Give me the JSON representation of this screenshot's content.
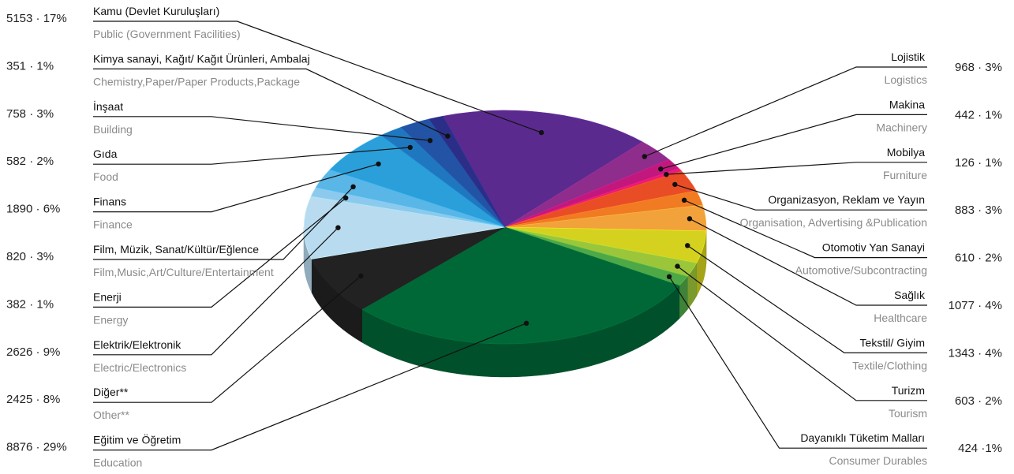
{
  "chart_data": {
    "type": "pie",
    "style": "3d-exploded-labels",
    "slices": [
      {
        "tr": "Kamu (Devlet Kuruluşları)",
        "en": "Public (Government Facilities)",
        "value": 5153,
        "value_label": "5153 · 17%",
        "color": "#5b2a8e",
        "side": "left"
      },
      {
        "tr": "Lojistik",
        "en": "Logistics",
        "value": 968,
        "value_label": "968 · 3%",
        "color": "#8e2d8b",
        "side": "right"
      },
      {
        "tr": "Makina",
        "en": "Machinery",
        "value": 442,
        "value_label": "442 · 1%",
        "color": "#c2187e",
        "side": "right"
      },
      {
        "tr": "Mobilya",
        "en": "Furniture",
        "value": 126,
        "value_label": "126 · 1%",
        "color": "#ec1a74",
        "side": "right"
      },
      {
        "tr": "Organizasyon, Reklam ve Yayın",
        "en": "Organisation, Advertising &Publication",
        "value": 883,
        "value_label": "883 · 3%",
        "color": "#e94d26",
        "side": "right"
      },
      {
        "tr": "Otomotiv Yan Sanayi",
        "en": "Automotive/Subcontracting",
        "value": 610,
        "value_label": "610 · 2%",
        "color": "#f07b22",
        "side": "right"
      },
      {
        "tr": "Sağlık",
        "en": "Healthcare",
        "value": 1077,
        "value_label": "1077 · 4%",
        "color": "#f2a23a",
        "side": "right"
      },
      {
        "tr": "Tekstil/ Giyim",
        "en": "Textile/Clothing",
        "value": 1343,
        "value_label": "1343 · 4%",
        "color": "#d4d21f",
        "side": "right"
      },
      {
        "tr": "Turizm",
        "en": "Tourism",
        "value": 603,
        "value_label": "603 · 2%",
        "color": "#9cc63a",
        "side": "right"
      },
      {
        "tr": "Dayanıklı Tüketim Malları",
        "en": "Consumer Durables",
        "value": 424,
        "value_label": "424 ·1%",
        "color": "#4fa846",
        "side": "right"
      },
      {
        "tr": "Eğitim ve Öğretim",
        "en": "Education",
        "value": 8876,
        "value_label": "8876 · 29%",
        "color": "#006837",
        "side": "left"
      },
      {
        "tr": "Diğer**",
        "en": "Other**",
        "value": 2425,
        "value_label": "2425 · 8%",
        "color": "#222222",
        "side": "left"
      },
      {
        "tr": "Elektrik/Elektronik",
        "en": "Electric/Electronics",
        "value": 2626,
        "value_label": "2626 · 9%",
        "color": "#b9dbf0",
        "side": "left"
      },
      {
        "tr": "Enerji",
        "en": "Energy",
        "value": 382,
        "value_label": "382 · 1%",
        "color": "#8cc9ec",
        "side": "left"
      },
      {
        "tr": "Film, Müzik, Sanat/Kültür/Eğlence",
        "en": "Film,Music,Art/Culture/Entertainment",
        "value": 820,
        "value_label": "820 · 3%",
        "color": "#5ab6e6",
        "side": "left"
      },
      {
        "tr": "Finans",
        "en": "Finance",
        "value": 1890,
        "value_label": "1890 · 6%",
        "color": "#2b9fd9",
        "side": "left"
      },
      {
        "tr": "Gıda",
        "en": "Food",
        "value": 582,
        "value_label": "582 · 2%",
        "color": "#1f78bf",
        "side": "left"
      },
      {
        "tr": "İnşaat",
        "en": "Building",
        "value": 758,
        "value_label": "758 · 3%",
        "color": "#2253a4",
        "side": "left"
      },
      {
        "tr": "Kimya sanayi, Kağıt/ Kağıt Ürünleri, Ambalaj",
        "en": "Chemistry,Paper/Paper Products,Package",
        "value": 351,
        "value_label": "351 · 1%",
        "color": "#2b2e86",
        "side": "left"
      }
    ],
    "left_label_order": [
      "Kamu (Devlet Kuruluşları)",
      "Kimya sanayi, Kağıt/ Kağıt Ürünleri, Ambalaj",
      "İnşaat",
      "Gıda",
      "Finans",
      "Film, Müzik, Sanat/Kültür/Eğlence",
      "Enerji",
      "Elektrik/Elektronik",
      "Diğer**",
      "Eğitim ve Öğretim"
    ],
    "right_label_order": [
      "Lojistik",
      "Makina",
      "Mobilya",
      "Organizasyon, Reklam ve Yayın",
      "Otomotiv Yan Sanayi",
      "Sağlık",
      "Tekstil/ Giyim",
      "Turizm",
      "Dayanıklı Tüketim Malları"
    ]
  }
}
